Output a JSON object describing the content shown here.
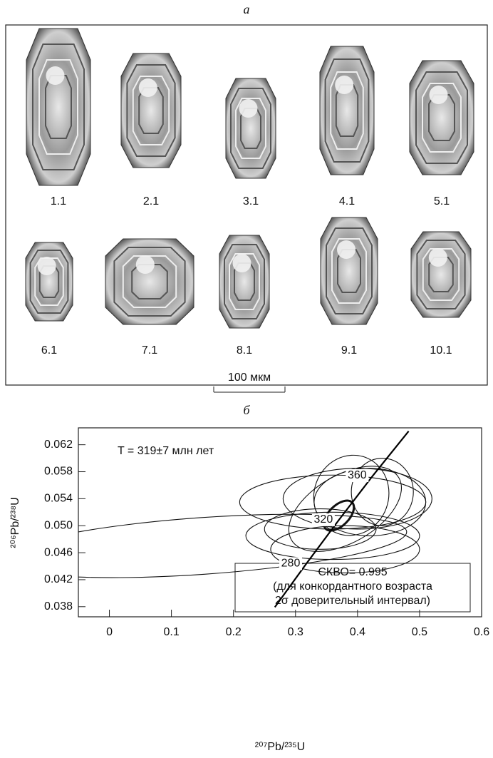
{
  "panel_a": {
    "title": "а",
    "grain_labels": [
      "1.1",
      "2.1",
      "3.1",
      "4.1",
      "5.1",
      "6.1",
      "7.1",
      "8.1",
      "9.1",
      "10.1"
    ],
    "scale_bar": "100 мкм"
  },
  "chart_data": {
    "type": "concordia",
    "title": "б",
    "annotation": "T = 319±7 млн лет",
    "stats_box": [
      "СКВО= 0.995",
      "(для конкордантного возраста",
      "2σ доверительный интервал)"
    ],
    "x_label": "²⁰⁷Pb/²³⁵U",
    "y_label": "²⁰⁶Pb/²³⁸U",
    "xlim": [
      -0.05,
      0.6
    ],
    "ylim": [
      0.0365,
      0.0645
    ],
    "xticks": [
      0,
      0.1,
      0.2,
      0.3,
      0.4,
      0.5,
      0.6
    ],
    "yticks": [
      0.038,
      0.042,
      0.046,
      {
        "value": 0.05,
        "label": "0.050"
      },
      0.054,
      0.058,
      0.062
    ],
    "concordia": {
      "x": [
        0.2667,
        0.3175,
        0.3702,
        0.4247,
        0.4824
      ],
      "y": [
        0.03793,
        0.04438,
        0.05088,
        0.05742,
        0.064
      ],
      "color": "#000000"
    },
    "age_ticks": [
      {
        "age": 280,
        "x": 0.3175,
        "y": 0.04438
      },
      {
        "age": 320,
        "x": 0.3702,
        "y": 0.05088
      },
      {
        "age": 360,
        "x": 0.4247,
        "y": 0.05742
      }
    ],
    "ellipses": [
      {
        "cx": 0.15,
        "cy": 0.047,
        "rx": 0.33,
        "ry": 0.0042,
        "angle": -4
      },
      {
        "cx": 0.36,
        "cy": 0.0535,
        "rx": 0.15,
        "ry": 0.004,
        "angle": 0
      },
      {
        "cx": 0.39,
        "cy": 0.0545,
        "rx": 0.06,
        "ry": 0.006,
        "angle": 20
      },
      {
        "cx": 0.4,
        "cy": 0.054,
        "rx": 0.12,
        "ry": 0.0045,
        "angle": 0
      },
      {
        "cx": 0.36,
        "cy": 0.0485,
        "rx": 0.14,
        "ry": 0.0035,
        "angle": 0
      },
      {
        "cx": 0.38,
        "cy": 0.0465,
        "rx": 0.12,
        "ry": 0.0035,
        "angle": 0
      },
      {
        "cx": 0.42,
        "cy": 0.0535,
        "rx": 0.09,
        "ry": 0.005,
        "angle": 0
      },
      {
        "cx": 0.34,
        "cy": 0.0495,
        "rx": 0.09,
        "ry": 0.003,
        "angle": 0
      },
      {
        "cx": 0.38,
        "cy": 0.0525,
        "rx": 0.1,
        "ry": 0.005,
        "angle": -30
      },
      {
        "cx": 0.44,
        "cy": 0.055,
        "rx": 0.05,
        "ry": 0.005,
        "angle": 0
      }
    ],
    "mean_ellipse": {
      "cx": 0.37,
      "cy": 0.0515,
      "rx": 0.03,
      "ry": 0.0015,
      "angle": -45
    }
  }
}
